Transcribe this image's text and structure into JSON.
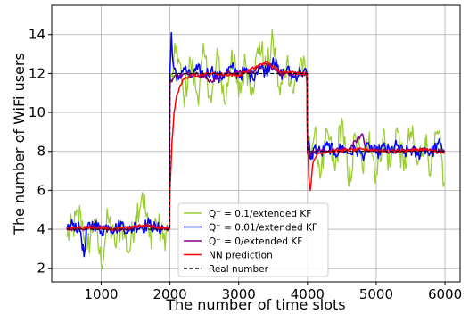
{
  "chart_data": {
    "type": "line",
    "title": "",
    "xlabel": "The number of time slots",
    "ylabel": "The number of WiFi users",
    "xlim": [
      280,
      6220
    ],
    "ylim": [
      1.3,
      15.5
    ],
    "xticks": [
      1000,
      2000,
      3000,
      4000,
      5000,
      6000
    ],
    "yticks": [
      2,
      4,
      6,
      8,
      10,
      12,
      14
    ],
    "grid": true,
    "legend_position": "lower-center",
    "series": [
      {
        "name": "Q⁻ = 0.1/extended KF",
        "color": "#9acd32",
        "noise": 0.85,
        "points": [
          [
            500,
            3.6
          ],
          [
            700,
            4.8
          ],
          [
            800,
            3.0
          ],
          [
            900,
            4.5
          ],
          [
            1000,
            2.2
          ],
          [
            1100,
            4.6
          ],
          [
            1200,
            3.2
          ],
          [
            1300,
            4.4
          ],
          [
            1400,
            2.8
          ],
          [
            1500,
            4.7
          ],
          [
            1600,
            5.9
          ],
          [
            1700,
            3.6
          ],
          [
            1800,
            4.4
          ],
          [
            1900,
            3.5
          ],
          [
            1990,
            4.2
          ],
          [
            2000,
            11.0
          ],
          [
            2100,
            13.4
          ],
          [
            2200,
            10.7
          ],
          [
            2300,
            12.6
          ],
          [
            2400,
            10.9
          ],
          [
            2500,
            13.0
          ],
          [
            2600,
            10.5
          ],
          [
            2700,
            12.9
          ],
          [
            2800,
            10.4
          ],
          [
            2900,
            13.2
          ],
          [
            3000,
            10.8
          ],
          [
            3100,
            12.6
          ],
          [
            3200,
            11.3
          ],
          [
            3300,
            13.6
          ],
          [
            3400,
            12.0
          ],
          [
            3500,
            13.7
          ],
          [
            3600,
            10.9
          ],
          [
            3700,
            12.7
          ],
          [
            3800,
            11.0
          ],
          [
            3900,
            12.8
          ],
          [
            3990,
            11.5
          ],
          [
            4000,
            7.8
          ],
          [
            4100,
            8.8
          ],
          [
            4200,
            6.9
          ],
          [
            4300,
            8.9
          ],
          [
            4400,
            7.0
          ],
          [
            4500,
            9.7
          ],
          [
            4600,
            6.2
          ],
          [
            4700,
            8.8
          ],
          [
            4800,
            7.1
          ],
          [
            4900,
            9.0
          ],
          [
            5000,
            6.8
          ],
          [
            5100,
            8.9
          ],
          [
            5200,
            7.2
          ],
          [
            5300,
            9.2
          ],
          [
            5400,
            7.0
          ],
          [
            5500,
            9.0
          ],
          [
            5600,
            7.3
          ],
          [
            5700,
            8.7
          ],
          [
            5800,
            7.2
          ],
          [
            5900,
            8.9
          ],
          [
            5990,
            6.4
          ]
        ]
      },
      {
        "name": "Q⁻ = 0.01/extended KF",
        "color": "#0000ff",
        "noise": 0.35,
        "points": [
          [
            500,
            4.0
          ],
          [
            600,
            4.3
          ],
          [
            700,
            3.9
          ],
          [
            750,
            2.6
          ],
          [
            800,
            4.1
          ],
          [
            900,
            4.3
          ],
          [
            1000,
            3.9
          ],
          [
            1100,
            4.2
          ],
          [
            1200,
            4.0
          ],
          [
            1300,
            4.3
          ],
          [
            1400,
            3.9
          ],
          [
            1500,
            4.2
          ],
          [
            1600,
            4.1
          ],
          [
            1700,
            4.3
          ],
          [
            1800,
            4.0
          ],
          [
            1900,
            4.1
          ],
          [
            1990,
            4.0
          ],
          [
            2000,
            12.0
          ],
          [
            2020,
            14.1
          ],
          [
            2050,
            12.4
          ],
          [
            2100,
            11.6
          ],
          [
            2200,
            12.3
          ],
          [
            2300,
            11.8
          ],
          [
            2400,
            12.2
          ],
          [
            2500,
            11.9
          ],
          [
            2600,
            12.2
          ],
          [
            2700,
            11.7
          ],
          [
            2800,
            12.0
          ],
          [
            2900,
            12.3
          ],
          [
            3000,
            11.9
          ],
          [
            3100,
            12.1
          ],
          [
            3200,
            11.8
          ],
          [
            3300,
            12.4
          ],
          [
            3400,
            12.1
          ],
          [
            3500,
            12.8
          ],
          [
            3600,
            11.9
          ],
          [
            3700,
            12.2
          ],
          [
            3800,
            11.8
          ],
          [
            3900,
            12.1
          ],
          [
            3990,
            12.0
          ],
          [
            4000,
            8.7
          ],
          [
            4050,
            7.6
          ],
          [
            4100,
            8.2
          ],
          [
            4200,
            7.9
          ],
          [
            4300,
            8.3
          ],
          [
            4400,
            7.9
          ],
          [
            4500,
            8.2
          ],
          [
            4600,
            7.9
          ],
          [
            4700,
            8.1
          ],
          [
            4800,
            7.8
          ],
          [
            4900,
            8.3
          ],
          [
            5000,
            7.9
          ],
          [
            5100,
            8.2
          ],
          [
            5200,
            8.0
          ],
          [
            5300,
            8.3
          ],
          [
            5400,
            7.9
          ],
          [
            5500,
            8.1
          ],
          [
            5600,
            7.8
          ],
          [
            5700,
            8.2
          ],
          [
            5800,
            7.9
          ],
          [
            5900,
            8.4
          ],
          [
            5990,
            8.0
          ]
        ]
      },
      {
        "name": "Q⁻ = 0/extended KF",
        "color": "#800080",
        "noise": 0.12,
        "points": [
          [
            500,
            4.0
          ],
          [
            900,
            4.1
          ],
          [
            1300,
            4.0
          ],
          [
            1700,
            4.2
          ],
          [
            1990,
            4.0
          ],
          [
            2000,
            11.6
          ],
          [
            2100,
            11.9
          ],
          [
            2400,
            12.0
          ],
          [
            2600,
            11.6
          ],
          [
            2800,
            12.0
          ],
          [
            3200,
            12.1
          ],
          [
            3400,
            12.5
          ],
          [
            3600,
            12.0
          ],
          [
            3990,
            12.0
          ],
          [
            4000,
            7.9
          ],
          [
            4200,
            8.0
          ],
          [
            4600,
            8.1
          ],
          [
            4800,
            8.9
          ],
          [
            4850,
            8.1
          ],
          [
            5200,
            8.0
          ],
          [
            5600,
            8.1
          ],
          [
            5990,
            8.0
          ]
        ]
      },
      {
        "name": "NN prediction",
        "color": "#ff0000",
        "noise": 0.08,
        "points": [
          [
            500,
            4.0
          ],
          [
            800,
            4.1
          ],
          [
            1200,
            4.0
          ],
          [
            1600,
            4.2
          ],
          [
            1990,
            4.0
          ],
          [
            2000,
            6.0
          ],
          [
            2030,
            8.5
          ],
          [
            2060,
            10.0
          ],
          [
            2100,
            10.9
          ],
          [
            2150,
            11.4
          ],
          [
            2200,
            11.7
          ],
          [
            2300,
            11.9
          ],
          [
            2600,
            12.0
          ],
          [
            3000,
            11.9
          ],
          [
            3400,
            12.6
          ],
          [
            3600,
            12.1
          ],
          [
            3990,
            12.0
          ],
          [
            4000,
            9.0
          ],
          [
            4020,
            6.6
          ],
          [
            4040,
            6.0
          ],
          [
            4080,
            7.4
          ],
          [
            4150,
            7.9
          ],
          [
            4300,
            8.0
          ],
          [
            4800,
            8.1
          ],
          [
            5200,
            8.0
          ],
          [
            5700,
            8.1
          ],
          [
            5990,
            7.9
          ]
        ]
      },
      {
        "name": "Real number",
        "color": "#000000",
        "dashed": true,
        "noise": 0,
        "points": [
          [
            500,
            4.0
          ],
          [
            2000,
            4.0
          ],
          [
            2000,
            12.0
          ],
          [
            4000,
            12.0
          ],
          [
            4000,
            8.0
          ],
          [
            6000,
            8.0
          ]
        ]
      }
    ]
  }
}
